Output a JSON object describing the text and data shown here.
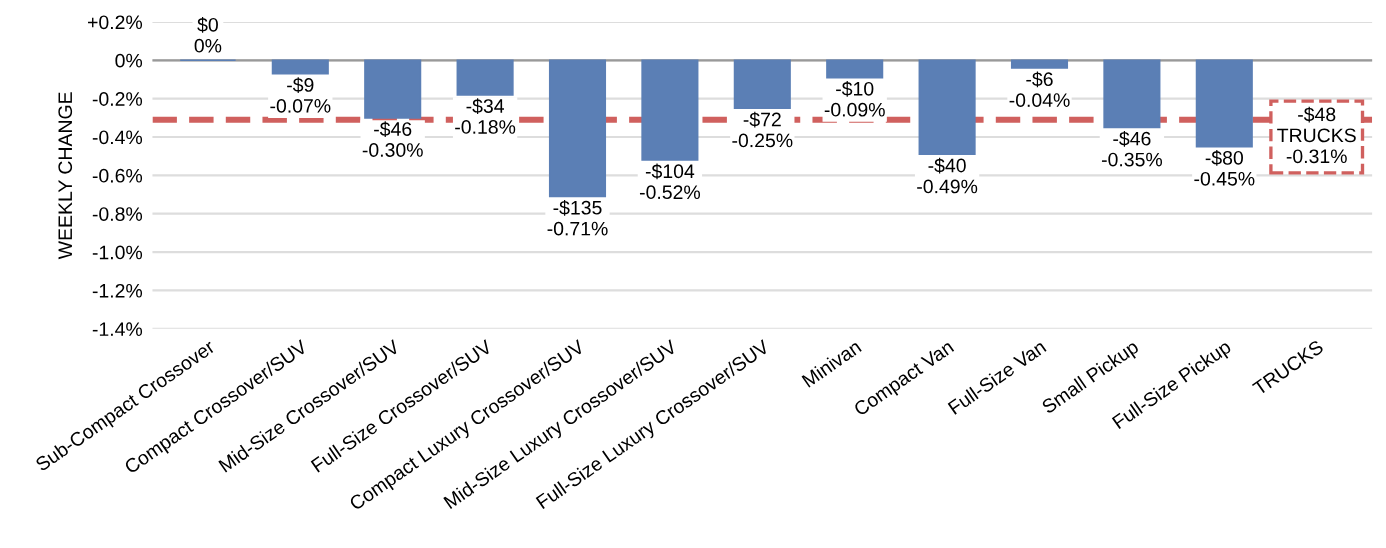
{
  "chart_data": {
    "type": "bar",
    "ylabel": "WEEKLY CHANGE",
    "categories": [
      "Sub-Compact Crossover",
      "Compact Crossover/SUV",
      "Mid-Size Crossover/SUV",
      "Full-Size Crossover/SUV",
      "Compact Luxury Crossover/SUV",
      "Mid-Size Luxury Crossover/SUV",
      "Full-Size Luxury Crossover/SUV",
      "Minivan",
      "Compact Van",
      "Full-Size Van",
      "Small Pickup",
      "Full-Size Pickup",
      "TRUCKS"
    ],
    "values": [
      0,
      -0.07,
      -0.3,
      -0.18,
      -0.71,
      -0.52,
      -0.25,
      -0.09,
      -0.49,
      -0.04,
      -0.35,
      -0.45,
      null
    ],
    "value_labels": [
      "$0\n0%",
      "-$9\n-0.07%",
      "-$46\n-0.30%",
      "-$34\n-0.18%",
      "-$135\n-0.71%",
      "-$104\n-0.52%",
      "-$72\n-0.25%",
      "-$10\n-0.09%",
      "-$40\n-0.49%",
      "-$6\n-0.04%",
      "-$46\n-0.35%",
      "-$80\n-0.45%",
      null
    ],
    "color": "#5b7fb5",
    "ylim": [
      -1.4,
      0.2
    ],
    "yticks": [
      {
        "value": 0.2,
        "label": "+0.2%"
      },
      {
        "value": 0,
        "label": "0%"
      },
      {
        "value": -0.2,
        "label": "-0.2%"
      },
      {
        "value": -0.4,
        "label": "-0.4%"
      },
      {
        "value": -0.6,
        "label": "-0.6%"
      },
      {
        "value": -0.8,
        "label": "-0.8%"
      },
      {
        "value": -1.0,
        "label": "-1.0%"
      },
      {
        "value": -1.2,
        "label": "-1.2%"
      },
      {
        "value": -1.4,
        "label": "-1.4%"
      }
    ],
    "ref_lines": [
      {
        "axis": "y",
        "value": -0.31,
        "label": "-$48\nTRUCKS\n-0.31%",
        "color": "#d0605e",
        "line_style": "dashed"
      }
    ],
    "grid": "y",
    "legend": false
  }
}
